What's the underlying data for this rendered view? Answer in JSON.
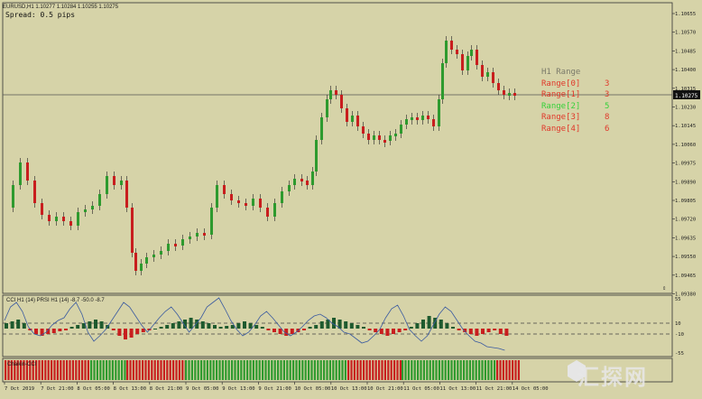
{
  "title": "EURUSD,H1  1.10277 1.10284 1.10255 1.10275",
  "spread": "Spread: 0.5 pips",
  "current_price": "1.10275",
  "price_axis": [
    "1.10655",
    "1.10570",
    "1.10485",
    "1.10400",
    "1.10315",
    "1.10230",
    "1.10145",
    "1.10060",
    "1.09975",
    "1.09890",
    "1.09805",
    "1.09720",
    "1.09635",
    "1.09550",
    "1.09465",
    "1.09380"
  ],
  "time_axis": [
    "7 Oct 2019",
    "7 Oct 21:00",
    "8 Oct 05:00",
    "8 Oct 13:00",
    "8 Oct 21:00",
    "9 Oct 05:00",
    "9 Oct 13:00",
    "9 Oct 21:00",
    "10 Oct 05:00",
    "10 Oct 13:00",
    "10 Oct 21:00",
    "11 Oct 05:00",
    "11 Oct 13:00",
    "11 Oct 21:00",
    "14 Oct 05:00"
  ],
  "range_panel": {
    "title": "H1 Range",
    "rows": [
      {
        "label": "Range[0]",
        "value": "3",
        "color": "#e0392b"
      },
      {
        "label": "Range[1]",
        "value": "3",
        "color": "#e0392b"
      },
      {
        "label": "Range[2]",
        "value": "5",
        "color": "#36d13a"
      },
      {
        "label": "Range[3]",
        "value": "8",
        "color": "#e0392b"
      },
      {
        "label": "Range[4]",
        "value": "6",
        "color": "#e0392b"
      }
    ]
  },
  "indicator_label": "CCI H1 (14) PRSI H1 (14) -8.7 -50.0 -8.7",
  "indicator_axis": [
    "55",
    "10",
    "-10",
    "-55"
  ],
  "bottom_label": "Chaikin-CCI",
  "watermark": "汇探网",
  "colors": {
    "bull": "#2e9a2e",
    "bear": "#c81e1e",
    "background": "#d6d3a8",
    "cci_line": "#3a5aa0"
  },
  "icons": {
    "scroll": "scroll-icon",
    "brand": "brand-logo-icon"
  }
}
